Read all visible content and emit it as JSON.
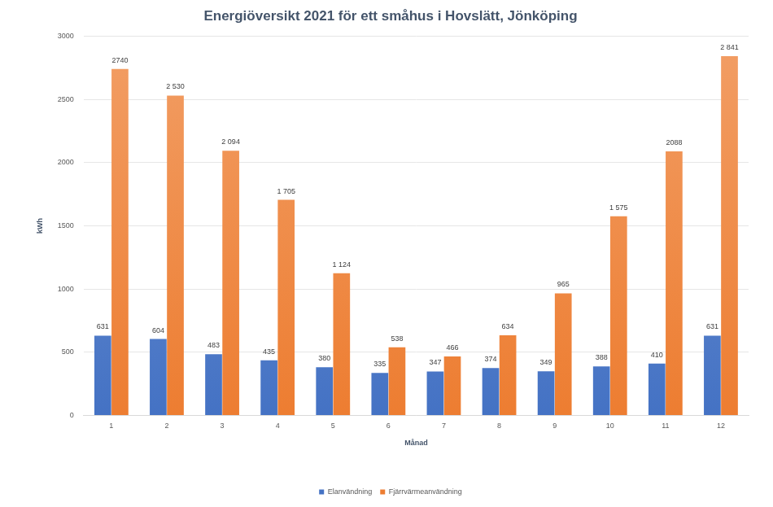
{
  "chart_data": {
    "type": "bar",
    "title": "Energiöversikt 2021 för ett småhus i Hovslätt, Jönköping",
    "x_label": "Månad",
    "y_label": "kWh",
    "categories": [
      1,
      2,
      3,
      4,
      5,
      6,
      7,
      8,
      9,
      10,
      11,
      12
    ],
    "series": [
      {
        "name": "Elanvändning",
        "color": "#4472c4",
        "values": [
          631,
          604,
          483,
          435,
          380,
          335,
          347,
          374,
          349,
          388,
          410,
          631
        ]
      },
      {
        "name": "Fjärrvärmeanvändning",
        "color": "#ed7d31",
        "values": [
          2740,
          2530,
          2094,
          1705,
          1124,
          538,
          466,
          634,
          965,
          1575,
          2088,
          2841
        ],
        "value_labels": [
          "2740",
          "2 530",
          "2 094",
          "1 705",
          "1 124",
          "538",
          "466",
          "634",
          "965",
          "1 575",
          "2088",
          "2 841"
        ]
      }
    ],
    "ylim": [
      0,
      3000
    ],
    "yticks": [
      0,
      500,
      1000,
      1500,
      2000,
      2500,
      3000
    ],
    "grid": true,
    "legend": "bottom",
    "data_labels": true
  }
}
